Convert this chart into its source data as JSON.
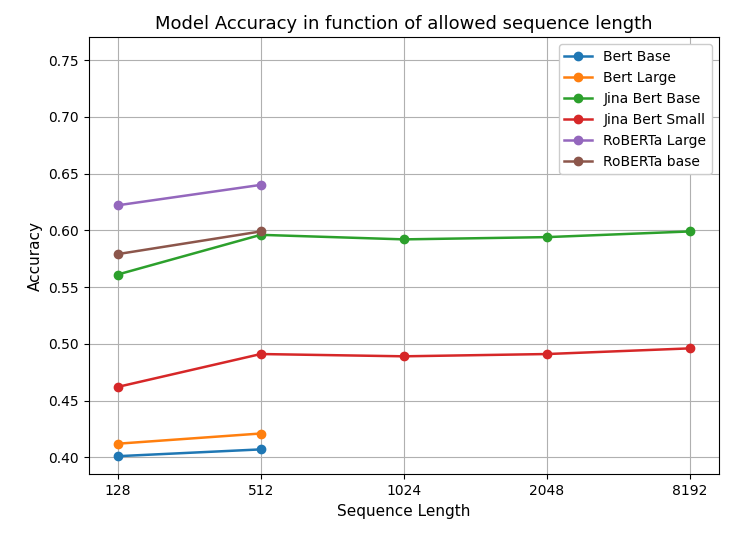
{
  "title": "Model Accuracy in function of allowed sequence length",
  "xlabel": "Sequence Length",
  "ylabel": "Accuracy",
  "x_values": [
    128,
    512,
    1024,
    2048,
    8192
  ],
  "x_labels": [
    "128",
    "512",
    "1024",
    "2048",
    "8192"
  ],
  "ylim": [
    0.385,
    0.77
  ],
  "yticks": [
    0.4,
    0.45,
    0.5,
    0.55,
    0.6,
    0.65,
    0.7,
    0.75
  ],
  "series": [
    {
      "label": "Bert Base",
      "color": "#1f77b4",
      "values": [
        0.401,
        0.407,
        null,
        null,
        null
      ]
    },
    {
      "label": "Bert Large",
      "color": "#ff7f0e",
      "values": [
        0.412,
        0.421,
        null,
        null,
        null
      ]
    },
    {
      "label": "Jina Bert Base",
      "color": "#2ca02c",
      "values": [
        0.561,
        0.596,
        0.592,
        0.594,
        0.599
      ]
    },
    {
      "label": "Jina Bert Small",
      "color": "#d62728",
      "values": [
        0.462,
        0.491,
        0.489,
        0.491,
        0.496
      ]
    },
    {
      "label": "RoBERTa Large",
      "color": "#9467bd",
      "values": [
        0.622,
        0.64,
        null,
        null,
        null
      ]
    },
    {
      "label": "RoBERTa base",
      "color": "#8c564b",
      "values": [
        0.579,
        0.599,
        null,
        null,
        null
      ]
    }
  ],
  "background_color": "#ffffff",
  "grid_color": "#b0b0b0",
  "marker": "o",
  "linewidth": 1.8,
  "markersize": 6,
  "title_fontsize": 13,
  "label_fontsize": 11,
  "tick_fontsize": 10,
  "legend_fontsize": 10
}
